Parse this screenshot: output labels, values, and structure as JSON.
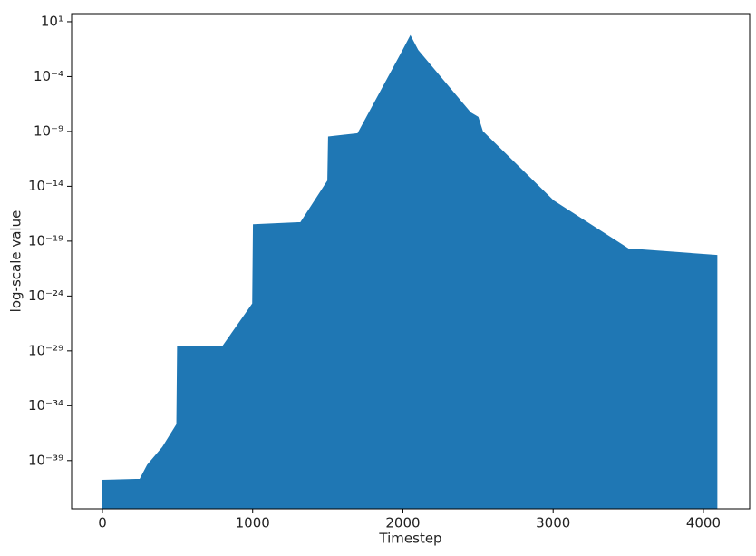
{
  "chart_data": {
    "type": "area",
    "xlabel": "Timestep",
    "ylabel": "log-scale value",
    "color": "#1f77b4",
    "log_y": true,
    "x": [
      0,
      250,
      300,
      400,
      495,
      500,
      800,
      1000,
      1005,
      1320,
      1500,
      1505,
      1700,
      2000,
      2050,
      2100,
      2450,
      2500,
      2530,
      3000,
      3500,
      4090
    ],
    "values": [
      1.6e-41,
      2e-41,
      4e-40,
      1.6e-38,
      2e-36,
      2.5e-29,
      2.5e-29,
      2e-25,
      3.2e-18,
      5e-18,
      3.2e-14,
      3.2e-10,
      6.3e-10,
      0.025,
      0.5,
      0.025,
      5e-08,
      2e-08,
      1e-09,
      5e-16,
      2e-20,
      5e-21
    ],
    "xlim": [
      -205,
      4308
    ],
    "xticks": [
      0,
      1000,
      2000,
      3000,
      4000
    ],
    "ylim": [
      4e-44,
      55
    ],
    "yticks": [
      {
        "value": 10,
        "label": "10¹"
      },
      {
        "value": 0.0001,
        "label": "10⁻⁴"
      },
      {
        "value": 1e-09,
        "label": "10⁻⁹"
      },
      {
        "value": 1e-14,
        "label": "10⁻¹⁴"
      },
      {
        "value": 1e-19,
        "label": "10⁻¹⁹"
      },
      {
        "value": 1e-24,
        "label": "10⁻²⁴"
      },
      {
        "value": 1e-29,
        "label": "10⁻²⁹"
      },
      {
        "value": 1e-34,
        "label": "10⁻³⁴"
      },
      {
        "value": 1e-39,
        "label": "10⁻³⁹"
      }
    ]
  }
}
